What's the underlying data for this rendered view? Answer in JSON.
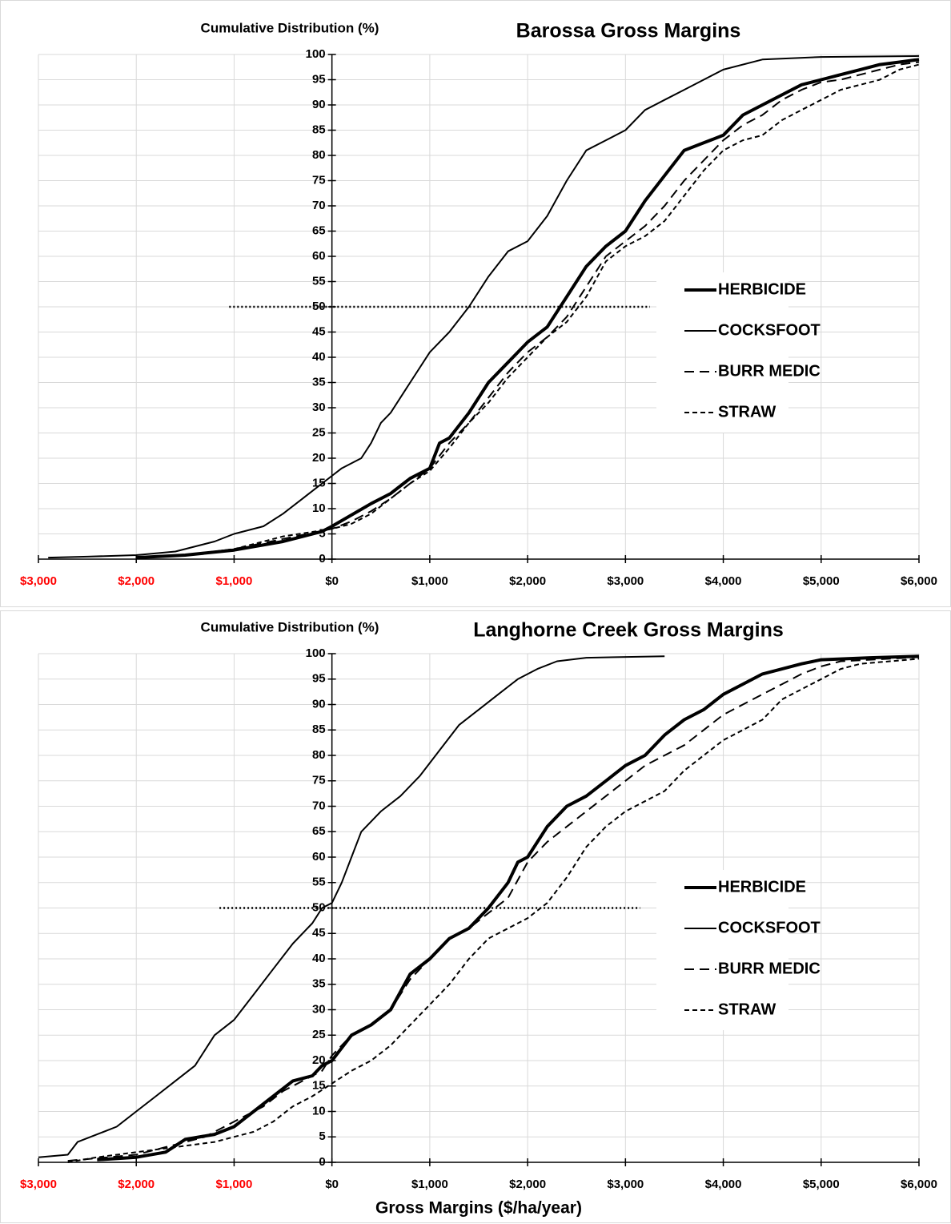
{
  "chart_data": [
    {
      "type": "line",
      "title": "Barossa Gross Margins",
      "y_label": "Cumulative Distribution (%)",
      "xlim": [
        -3000,
        6000
      ],
      "ylim": [
        0,
        100
      ],
      "xticks": [
        {
          "value": -3000,
          "label": "$3,000"
        },
        {
          "value": -2000,
          "label": "$2,000"
        },
        {
          "value": -1000,
          "label": "$1,000"
        },
        {
          "value": 0,
          "label": "$0"
        },
        {
          "value": 1000,
          "label": "$1,000"
        },
        {
          "value": 2000,
          "label": "$2,000"
        },
        {
          "value": 3000,
          "label": "$3,000"
        },
        {
          "value": 4000,
          "label": "$4,000"
        },
        {
          "value": 5000,
          "label": "$5,000"
        },
        {
          "value": 6000,
          "label": "$6,000"
        }
      ],
      "yticks": [
        0,
        5,
        10,
        15,
        20,
        25,
        30,
        35,
        40,
        45,
        50,
        55,
        60,
        65,
        70,
        75,
        80,
        85,
        90,
        95,
        100
      ],
      "grid": true,
      "negative_tick_color": "#ff0000",
      "legend": "right",
      "reference_line": {
        "y": 50,
        "x": [
          -1050,
          3250
        ]
      },
      "series": [
        {
          "name": "HERBICIDE",
          "color": "#000000",
          "line_width": 4,
          "dash": "solid",
          "x": [
            -2000,
            -1500,
            -1000,
            -500,
            -100,
            0,
            400,
            600,
            800,
            1000,
            1100,
            1200,
            1400,
            1600,
            1800,
            2000,
            2200,
            2400,
            2600,
            2800,
            3000,
            3200,
            3400,
            3600,
            3800,
            4000,
            4200,
            4400,
            4600,
            4800,
            5000,
            5200,
            5400,
            5600,
            5800,
            6000
          ],
          "values": [
            0.3,
            0.8,
            1.8,
            3.5,
            5.5,
            6.5,
            11,
            13,
            16,
            18,
            23,
            24,
            29,
            35,
            39,
            43,
            46,
            52,
            58,
            62,
            65,
            71,
            76,
            81,
            82.5,
            84,
            88,
            90,
            92,
            94,
            95,
            96,
            97,
            98,
            98.5,
            99
          ]
        },
        {
          "name": "COCKSFOOT",
          "color": "#000000",
          "line_width": 2,
          "dash": "solid",
          "x": [
            -2900,
            -2500,
            -2000,
            -1600,
            -1200,
            -1000,
            -700,
            -500,
            -300,
            -100,
            0,
            100,
            300,
            400,
            500,
            600,
            800,
            1000,
            1200,
            1400,
            1600,
            1800,
            2000,
            2200,
            2400,
            2600,
            2800,
            3000,
            3200,
            3400,
            3600,
            3800,
            4000,
            4400,
            5000,
            6000
          ],
          "values": [
            0.3,
            0.5,
            0.8,
            1.5,
            3.5,
            5,
            6.5,
            9,
            12,
            15,
            16.5,
            18,
            20,
            23,
            27,
            29,
            35,
            41,
            45,
            50,
            56,
            61,
            63,
            68,
            75,
            81,
            83,
            85,
            89,
            91,
            93,
            95,
            97,
            99,
            99.5,
            99.7
          ]
        },
        {
          "name": "BURR MEDIC",
          "color": "#000000",
          "line_width": 2,
          "dash": "long",
          "x": [
            -1900,
            -1500,
            -1000,
            -500,
            0,
            200,
            400,
            600,
            800,
            1000,
            1200,
            1400,
            1600,
            1800,
            2000,
            2200,
            2400,
            2600,
            2800,
            3000,
            3200,
            3400,
            3600,
            3800,
            4000,
            4200,
            4400,
            4600,
            4800,
            5000,
            5200,
            5400,
            5600,
            5800,
            6000
          ],
          "values": [
            0.3,
            0.8,
            2,
            4,
            6,
            7.5,
            9.5,
            12,
            15,
            18,
            23,
            27,
            32,
            37,
            41,
            44,
            48,
            54,
            60,
            63,
            66,
            70,
            75,
            79,
            83,
            86,
            88,
            91,
            93,
            94.5,
            95,
            96,
            97,
            98,
            98.5
          ]
        },
        {
          "name": "STRAW",
          "color": "#000000",
          "line_width": 2,
          "dash": "short",
          "x": [
            -1900,
            -1500,
            -1000,
            -500,
            0,
            200,
            400,
            600,
            800,
            1000,
            1200,
            1400,
            1600,
            1800,
            2000,
            2200,
            2400,
            2600,
            2800,
            3000,
            3200,
            3400,
            3600,
            3800,
            4000,
            4200,
            4400,
            4600,
            4800,
            5000,
            5200,
            5400,
            5600,
            5800,
            6000
          ],
          "values": [
            0.3,
            0.8,
            2,
            4.5,
            6,
            7,
            9,
            12,
            15,
            17.5,
            22,
            27,
            31,
            36,
            40,
            44,
            47,
            52,
            59,
            62,
            64,
            67,
            72,
            77,
            81,
            83,
            84,
            87,
            89,
            91,
            93,
            94,
            95,
            97,
            98
          ]
        }
      ]
    },
    {
      "type": "line",
      "title": "Langhorne Creek Gross Margins",
      "y_label": "Cumulative Distribution (%)",
      "x_label": "Gross Margins ($/ha/year)",
      "xlim": [
        -3000,
        6000
      ],
      "ylim": [
        0,
        100
      ],
      "xticks": [
        {
          "value": -3000,
          "label": "$3,000"
        },
        {
          "value": -2000,
          "label": "$2,000"
        },
        {
          "value": -1000,
          "label": "$1,000"
        },
        {
          "value": 0,
          "label": "$0"
        },
        {
          "value": 1000,
          "label": "$1,000"
        },
        {
          "value": 2000,
          "label": "$2,000"
        },
        {
          "value": 3000,
          "label": "$3,000"
        },
        {
          "value": 4000,
          "label": "$4,000"
        },
        {
          "value": 5000,
          "label": "$5,000"
        },
        {
          "value": 6000,
          "label": "$6,000"
        }
      ],
      "yticks": [
        0,
        5,
        10,
        15,
        20,
        25,
        30,
        35,
        40,
        45,
        50,
        55,
        60,
        65,
        70,
        75,
        80,
        85,
        90,
        95,
        100
      ],
      "grid": true,
      "negative_tick_color": "#ff0000",
      "legend": "right",
      "reference_line": {
        "y": 50,
        "x": [
          -1150,
          3150
        ]
      },
      "series": [
        {
          "name": "HERBICIDE",
          "color": "#000000",
          "line_width": 4,
          "dash": "solid",
          "x": [
            -2400,
            -2000,
            -1700,
            -1500,
            -1200,
            -1000,
            -800,
            -600,
            -400,
            -200,
            -100,
            0,
            200,
            400,
            600,
            800,
            1000,
            1200,
            1400,
            1600,
            1800,
            1900,
            2000,
            2200,
            2400,
            2600,
            2800,
            3000,
            3200,
            3400,
            3600,
            3800,
            4000,
            4200,
            4400,
            4600,
            4800,
            5000,
            5500,
            6000
          ],
          "values": [
            0.5,
            1,
            2,
            4.5,
            5.5,
            7,
            10,
            13,
            16,
            17,
            19,
            20,
            25,
            27,
            30,
            37,
            40,
            44,
            46,
            50,
            55,
            59,
            60,
            66,
            70,
            72,
            75,
            78,
            80,
            84,
            87,
            89,
            92,
            94,
            96,
            97,
            98,
            98.8,
            99.2,
            99.5
          ]
        },
        {
          "name": "COCKSFOOT",
          "color": "#000000",
          "line_width": 2,
          "dash": "solid",
          "x": [
            -3000,
            -2700,
            -2600,
            -2400,
            -2200,
            -2000,
            -1800,
            -1600,
            -1400,
            -1200,
            -1000,
            -800,
            -600,
            -400,
            -200,
            -100,
            0,
            100,
            200,
            300,
            500,
            700,
            900,
            1100,
            1300,
            1500,
            1700,
            1900,
            2100,
            2300,
            2600,
            3400
          ],
          "values": [
            1,
            1.5,
            4,
            5.5,
            7,
            10,
            13,
            16,
            19,
            25,
            28,
            33,
            38,
            43,
            47,
            50,
            51,
            55,
            60,
            65,
            69,
            72,
            76,
            81,
            86,
            89,
            92,
            95,
            97,
            98.5,
            99.2,
            99.5
          ]
        },
        {
          "name": "BURR MEDIC",
          "color": "#000000",
          "line_width": 2,
          "dash": "long",
          "x": [
            -2700,
            -2400,
            -2000,
            -1700,
            -1300,
            -1000,
            -700,
            -500,
            -300,
            -100,
            0,
            200,
            400,
            600,
            800,
            1000,
            1200,
            1400,
            1600,
            1800,
            2000,
            2200,
            2400,
            2600,
            2800,
            3000,
            3200,
            3400,
            3600,
            3800,
            4000,
            4200,
            4400,
            4600,
            4800,
            5000,
            5200,
            6000
          ],
          "values": [
            0.3,
            0.8,
            1.5,
            3,
            5,
            8,
            11,
            14,
            16,
            18,
            21,
            25,
            27,
            30,
            36,
            40,
            44,
            46,
            49,
            52,
            59,
            63,
            66,
            69,
            72,
            75,
            78,
            80,
            82,
            85,
            88,
            90,
            92,
            94,
            96,
            97.5,
            98.5,
            99.3
          ]
        },
        {
          "name": "STRAW",
          "color": "#000000",
          "line_width": 2,
          "dash": "short",
          "x": [
            -2700,
            -2400,
            -2000,
            -1600,
            -1200,
            -800,
            -600,
            -400,
            -200,
            0,
            200,
            400,
            600,
            800,
            1000,
            1200,
            1400,
            1600,
            1800,
            2000,
            2200,
            2400,
            2600,
            2800,
            3000,
            3200,
            3400,
            3600,
            3800,
            4000,
            4200,
            4400,
            4600,
            4800,
            5000,
            5200,
            5400,
            6000
          ],
          "values": [
            0,
            1,
            2,
            3,
            4,
            6,
            8,
            11,
            13,
            15.5,
            18,
            20,
            23,
            27,
            31,
            35,
            40,
            44,
            46,
            48,
            51,
            56,
            62,
            66,
            69,
            71,
            73,
            77,
            80,
            83,
            85,
            87,
            91,
            93,
            95,
            97,
            98,
            99
          ]
        }
      ]
    }
  ]
}
